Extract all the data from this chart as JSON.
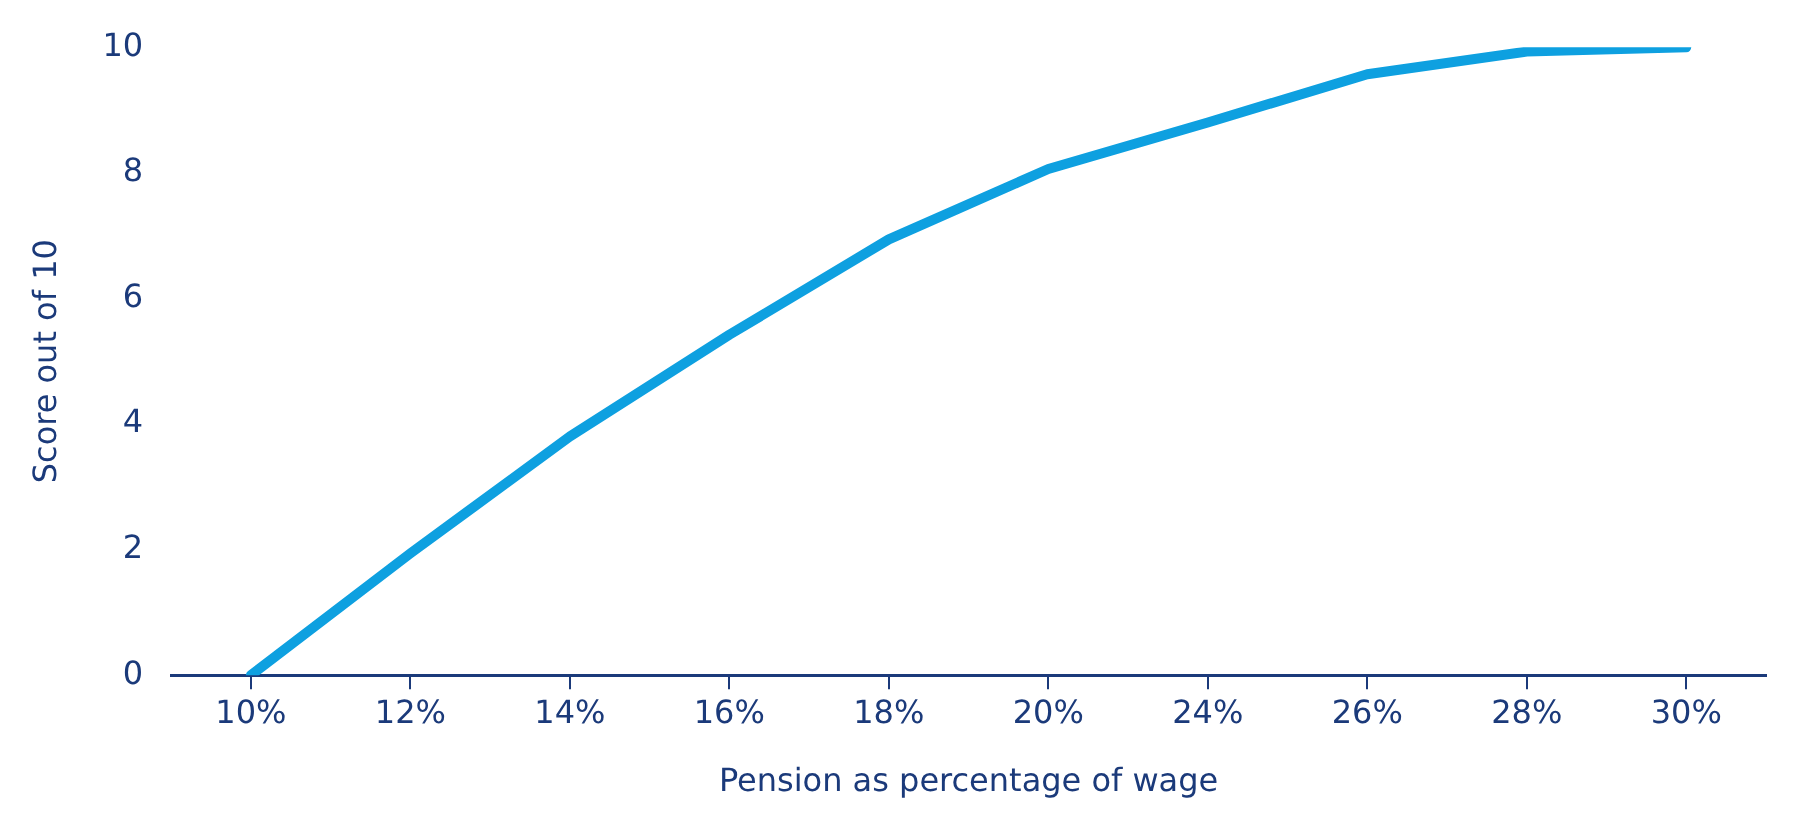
{
  "chart_data": {
    "type": "line",
    "xlabel": "Pension as percentage of wage",
    "ylabel": "Score out of 10",
    "categories": [
      "10%",
      "12%",
      "14%",
      "16%",
      "18%",
      "20%",
      "24%",
      "26%",
      "28%",
      "30%"
    ],
    "series": [
      {
        "color": "#0ea0e0",
        "values": [
          0,
          1.94,
          3.8,
          5.42,
          6.94,
          8.06,
          8.8,
          9.57,
          9.93,
          10
        ]
      }
    ],
    "ylim": [
      0,
      10
    ],
    "yticks": [
      0,
      2,
      4,
      6,
      8,
      10
    ],
    "grid": false,
    "legend": false,
    "marker": "none",
    "line_style": "solid"
  }
}
